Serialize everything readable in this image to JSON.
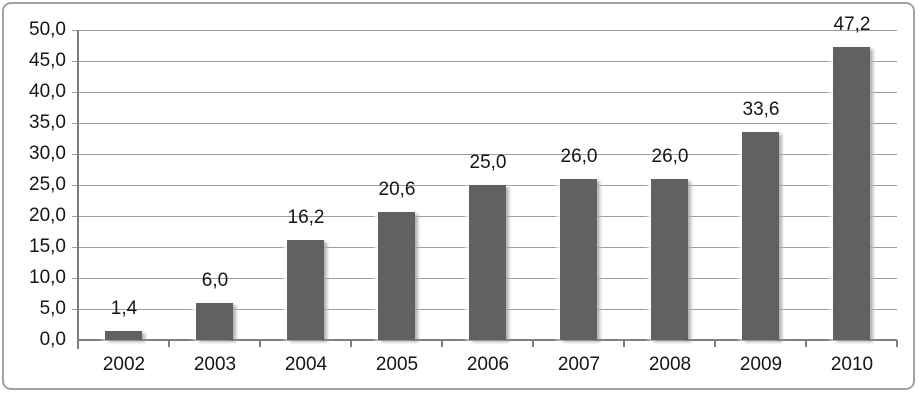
{
  "chart_data": {
    "type": "bar",
    "title": "",
    "xlabel": "",
    "ylabel": "",
    "categories": [
      "2002",
      "2003",
      "2004",
      "2005",
      "2006",
      "2007",
      "2008",
      "2009",
      "2010"
    ],
    "values": [
      1.4,
      6.0,
      16.2,
      20.6,
      25.0,
      26.0,
      26.0,
      33.6,
      47.2
    ],
    "value_labels": [
      "1,4",
      "6,0",
      "16,2",
      "20,6",
      "25,0",
      "26,0",
      "26,0",
      "33,6",
      "47,2"
    ],
    "y_tick_labels": [
      "0,0",
      "5,0",
      "10,0",
      "15,0",
      "20,0",
      "25,0",
      "30,0",
      "35,0",
      "40,0",
      "45,0",
      "50,0"
    ],
    "ylim": [
      0,
      50
    ],
    "y_tick_step": 5,
    "grid": true,
    "legend": "none",
    "decimal_separator": ",",
    "colors": {
      "bar": "#616161",
      "gridline": "#9c9c9c",
      "axis": "#7f7f7f",
      "text": "#161616",
      "frame_border": "#a2a2a2",
      "background": "#ffffff"
    }
  }
}
